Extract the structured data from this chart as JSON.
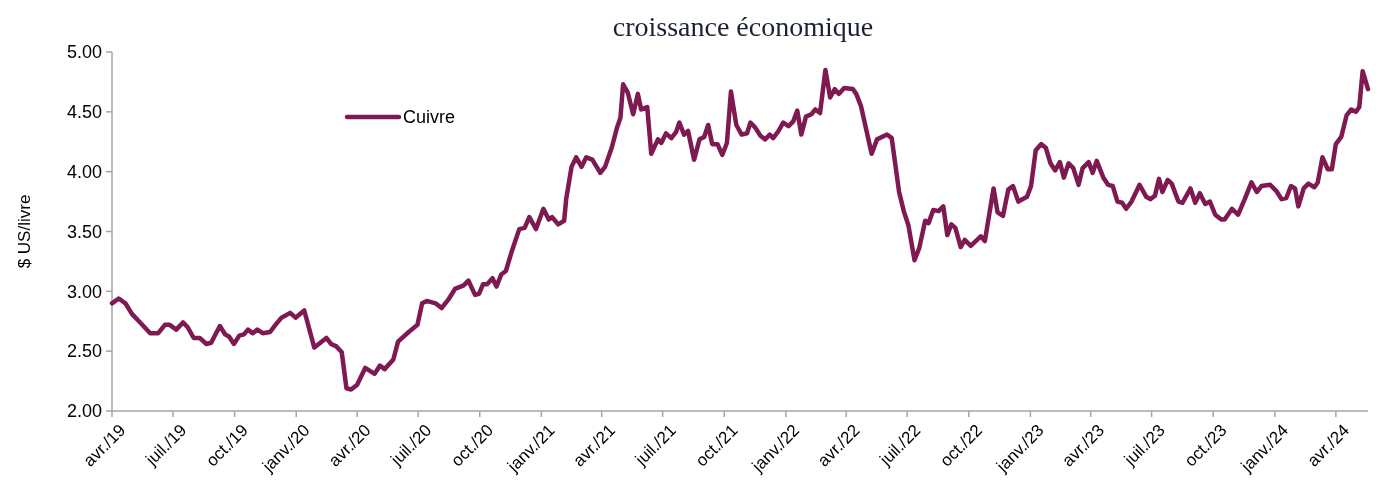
{
  "chart_data": {
    "type": "line",
    "title": "croissance économique",
    "ylabel": "$ US/livre",
    "x": [
      "2019-04-01",
      "2019-04-11",
      "2019-04-21",
      "2019-05-01",
      "2019-05-13",
      "2019-05-28",
      "2019-06-09",
      "2019-06-19",
      "2019-06-26",
      "2019-07-06",
      "2019-07-16",
      "2019-07-23",
      "2019-08-01",
      "2019-08-10",
      "2019-08-20",
      "2019-08-27",
      "2019-09-09",
      "2019-09-17",
      "2019-09-23",
      "2019-09-30",
      "2019-10-08",
      "2019-10-15",
      "2019-10-21",
      "2019-10-28",
      "2019-11-04",
      "2019-11-12",
      "2019-11-23",
      "2019-12-01",
      "2019-12-10",
      "2019-12-23",
      "2019-12-31",
      "2020-01-13",
      "2020-01-28",
      "2020-02-15",
      "2020-02-22",
      "2020-03-01",
      "2020-03-09",
      "2020-03-16",
      "2020-03-23",
      "2020-04-01",
      "2020-04-13",
      "2020-04-27",
      "2020-05-05",
      "2020-05-12",
      "2020-05-25",
      "2020-06-01",
      "2020-06-17",
      "2020-06-30",
      "2020-07-07",
      "2020-07-14",
      "2020-07-27",
      "2020-08-05",
      "2020-08-15",
      "2020-08-25",
      "2020-09-07",
      "2020-09-14",
      "2020-09-24",
      "2020-09-30",
      "2020-10-06",
      "2020-10-12",
      "2020-10-20",
      "2020-10-26",
      "2020-11-02",
      "2020-11-09",
      "2020-11-17",
      "2020-11-29",
      "2020-12-07",
      "2020-12-14",
      "2020-12-24",
      "2021-01-04",
      "2021-01-12",
      "2021-01-17",
      "2021-01-26",
      "2021-02-04",
      "2021-02-07",
      "2021-02-15",
      "2021-02-22",
      "2021-03-02",
      "2021-03-09",
      "2021-03-18",
      "2021-03-30",
      "2021-04-06",
      "2021-04-16",
      "2021-04-24",
      "2021-04-29",
      "2021-05-03",
      "2021-05-10",
      "2021-05-18",
      "2021-05-25",
      "2021-05-30",
      "2021-06-08",
      "2021-06-14",
      "2021-06-24",
      "2021-06-29",
      "2021-07-06",
      "2021-07-14",
      "2021-07-21",
      "2021-07-26",
      "2021-08-02",
      "2021-08-08",
      "2021-08-17",
      "2021-08-25",
      "2021-09-01",
      "2021-09-07",
      "2021-09-13",
      "2021-09-21",
      "2021-09-28",
      "2021-10-05",
      "2021-10-11",
      "2021-10-19",
      "2021-10-27",
      "2021-11-04",
      "2021-11-09",
      "2021-11-16",
      "2021-11-24",
      "2021-12-01",
      "2021-12-08",
      "2021-12-13",
      "2021-12-21",
      "2021-12-28",
      "2022-01-05",
      "2022-01-12",
      "2022-01-18",
      "2022-01-24",
      "2022-01-31",
      "2022-02-08",
      "2022-02-14",
      "2022-02-21",
      "2022-03-01",
      "2022-03-08",
      "2022-03-15",
      "2022-03-21",
      "2022-03-29",
      "2022-04-11",
      "2022-04-16",
      "2022-04-23",
      "2022-05-01",
      "2022-05-09",
      "2022-05-17",
      "2022-06-01",
      "2022-06-08",
      "2022-06-19",
      "2022-06-26",
      "2022-07-03",
      "2022-07-12",
      "2022-07-19",
      "2022-07-28",
      "2022-08-02",
      "2022-08-09",
      "2022-08-17",
      "2022-08-24",
      "2022-08-30",
      "2022-09-05",
      "2022-09-11",
      "2022-09-19",
      "2022-09-25",
      "2022-10-04",
      "2022-10-19",
      "2022-10-25",
      "2022-11-07",
      "2022-11-13",
      "2022-11-21",
      "2022-11-29",
      "2022-12-06",
      "2022-12-14",
      "2022-12-27",
      "2023-01-02",
      "2023-01-09",
      "2023-01-17",
      "2023-01-24",
      "2023-01-31",
      "2023-02-07",
      "2023-02-14",
      "2023-02-20",
      "2023-02-27",
      "2023-03-06",
      "2023-03-14",
      "2023-03-20",
      "2023-03-29",
      "2023-04-04",
      "2023-04-10",
      "2023-04-20",
      "2023-04-27",
      "2023-05-04",
      "2023-05-11",
      "2023-05-18",
      "2023-05-24",
      "2023-06-01",
      "2023-06-13",
      "2023-06-23",
      "2023-06-29",
      "2023-07-06",
      "2023-07-12",
      "2023-07-17",
      "2023-07-25",
      "2023-07-31",
      "2023-08-10",
      "2023-08-16",
      "2023-08-28",
      "2023-09-04",
      "2023-09-11",
      "2023-09-19",
      "2023-09-26",
      "2023-10-04",
      "2023-10-13",
      "2023-10-18",
      "2023-10-29",
      "2023-11-07",
      "2023-11-17",
      "2023-11-27",
      "2023-12-05",
      "2023-12-12",
      "2023-12-25",
      "2024-01-03",
      "2024-01-11",
      "2024-01-18",
      "2024-01-25",
      "2024-01-31",
      "2024-02-05",
      "2024-02-13",
      "2024-02-20",
      "2024-02-29",
      "2024-03-05",
      "2024-03-12",
      "2024-03-20",
      "2024-03-26",
      "2024-04-01",
      "2024-04-09",
      "2024-04-17",
      "2024-04-24",
      "2024-05-01",
      "2024-05-06",
      "2024-05-11",
      "2024-05-19"
    ],
    "series": [
      {
        "name": "Cuivre",
        "color": "#7e1952",
        "values": [
          2.9,
          2.94,
          2.9,
          2.81,
          2.74,
          2.65,
          2.65,
          2.72,
          2.72,
          2.68,
          2.74,
          2.7,
          2.61,
          2.61,
          2.56,
          2.57,
          2.71,
          2.64,
          2.62,
          2.56,
          2.63,
          2.64,
          2.68,
          2.65,
          2.68,
          2.65,
          2.66,
          2.72,
          2.78,
          2.82,
          2.78,
          2.84,
          2.53,
          2.61,
          2.56,
          2.54,
          2.49,
          2.19,
          2.18,
          2.22,
          2.36,
          2.31,
          2.38,
          2.35,
          2.43,
          2.58,
          2.66,
          2.72,
          2.9,
          2.92,
          2.9,
          2.86,
          2.93,
          3.02,
          3.05,
          3.09,
          2.97,
          2.98,
          3.06,
          3.06,
          3.11,
          3.04,
          3.14,
          3.17,
          3.32,
          3.52,
          3.53,
          3.62,
          3.52,
          3.69,
          3.6,
          3.62,
          3.56,
          3.59,
          3.77,
          4.04,
          4.12,
          4.04,
          4.12,
          4.1,
          3.99,
          4.04,
          4.2,
          4.37,
          4.45,
          4.73,
          4.66,
          4.48,
          4.65,
          4.52,
          4.54,
          4.15,
          4.27,
          4.24,
          4.32,
          4.28,
          4.33,
          4.41,
          4.31,
          4.34,
          4.1,
          4.27,
          4.29,
          4.39,
          4.23,
          4.23,
          4.14,
          4.24,
          4.67,
          4.39,
          4.31,
          4.32,
          4.41,
          4.37,
          4.3,
          4.27,
          4.31,
          4.28,
          4.34,
          4.41,
          4.38,
          4.42,
          4.51,
          4.31,
          4.46,
          4.48,
          4.52,
          4.49,
          4.85,
          4.62,
          4.69,
          4.65,
          4.7,
          4.69,
          4.65,
          4.55,
          4.35,
          4.15,
          4.27,
          4.31,
          4.28,
          3.83,
          3.67,
          3.55,
          3.26,
          3.36,
          3.59,
          3.57,
          3.68,
          3.67,
          3.71,
          3.47,
          3.56,
          3.53,
          3.37,
          3.43,
          3.38,
          3.46,
          3.42,
          3.86,
          3.66,
          3.63,
          3.85,
          3.88,
          3.75,
          3.79,
          3.88,
          4.18,
          4.23,
          4.2,
          4.07,
          4.01,
          4.08,
          3.95,
          4.07,
          4.03,
          3.89,
          4.03,
          4.08,
          3.99,
          4.09,
          3.95,
          3.89,
          3.88,
          3.75,
          3.74,
          3.69,
          3.75,
          3.89,
          3.79,
          3.77,
          3.8,
          3.94,
          3.83,
          3.93,
          3.9,
          3.75,
          3.74,
          3.86,
          3.74,
          3.82,
          3.73,
          3.75,
          3.64,
          3.6,
          3.6,
          3.69,
          3.64,
          3.77,
          3.91,
          3.83,
          3.88,
          3.89,
          3.84,
          3.77,
          3.78,
          3.88,
          3.86,
          3.71,
          3.86,
          3.9,
          3.87,
          3.91,
          4.12,
          4.02,
          4.02,
          4.23,
          4.29,
          4.47,
          4.52,
          4.5,
          4.54,
          4.84,
          4.69
        ]
      }
    ],
    "xlim": [
      "2019-04-01",
      "2024-05-19"
    ],
    "xticks": [
      {
        "value": "2019-04-01",
        "label": "avr./19"
      },
      {
        "value": "2019-07-01",
        "label": "juil./19"
      },
      {
        "value": "2019-10-01",
        "label": "oct./19"
      },
      {
        "value": "2020-01-01",
        "label": "janv./20"
      },
      {
        "value": "2020-04-01",
        "label": "avr./20"
      },
      {
        "value": "2020-07-01",
        "label": "juil./20"
      },
      {
        "value": "2020-10-01",
        "label": "oct./20"
      },
      {
        "value": "2021-01-01",
        "label": "janv./21"
      },
      {
        "value": "2021-04-01",
        "label": "avr./21"
      },
      {
        "value": "2021-07-01",
        "label": "juil./21"
      },
      {
        "value": "2021-10-01",
        "label": "oct./21"
      },
      {
        "value": "2022-01-01",
        "label": "janv./22"
      },
      {
        "value": "2022-04-01",
        "label": "avr./22"
      },
      {
        "value": "2022-07-01",
        "label": "juil./22"
      },
      {
        "value": "2022-10-01",
        "label": "oct./22"
      },
      {
        "value": "2023-01-01",
        "label": "janv./23"
      },
      {
        "value": "2023-04-01",
        "label": "avr./23"
      },
      {
        "value": "2023-07-01",
        "label": "juil./23"
      },
      {
        "value": "2023-10-01",
        "label": "oct./23"
      },
      {
        "value": "2024-01-01",
        "label": "janv./24"
      },
      {
        "value": "2024-04-01",
        "label": "avr./24"
      }
    ],
    "ylim": [
      2,
      5
    ],
    "yticks": [
      {
        "value": 2,
        "label": "2.00"
      },
      {
        "value": 2.5,
        "label": "2.50"
      },
      {
        "value": 3,
        "label": "3.00"
      },
      {
        "value": 3.5,
        "label": "3.50"
      },
      {
        "value": 4,
        "label": "4.00"
      },
      {
        "value": 4.5,
        "label": "4.50"
      },
      {
        "value": 5,
        "label": "5.00"
      }
    ],
    "grid": false,
    "legend": "top left",
    "line_style": "solid",
    "marker": "none"
  }
}
